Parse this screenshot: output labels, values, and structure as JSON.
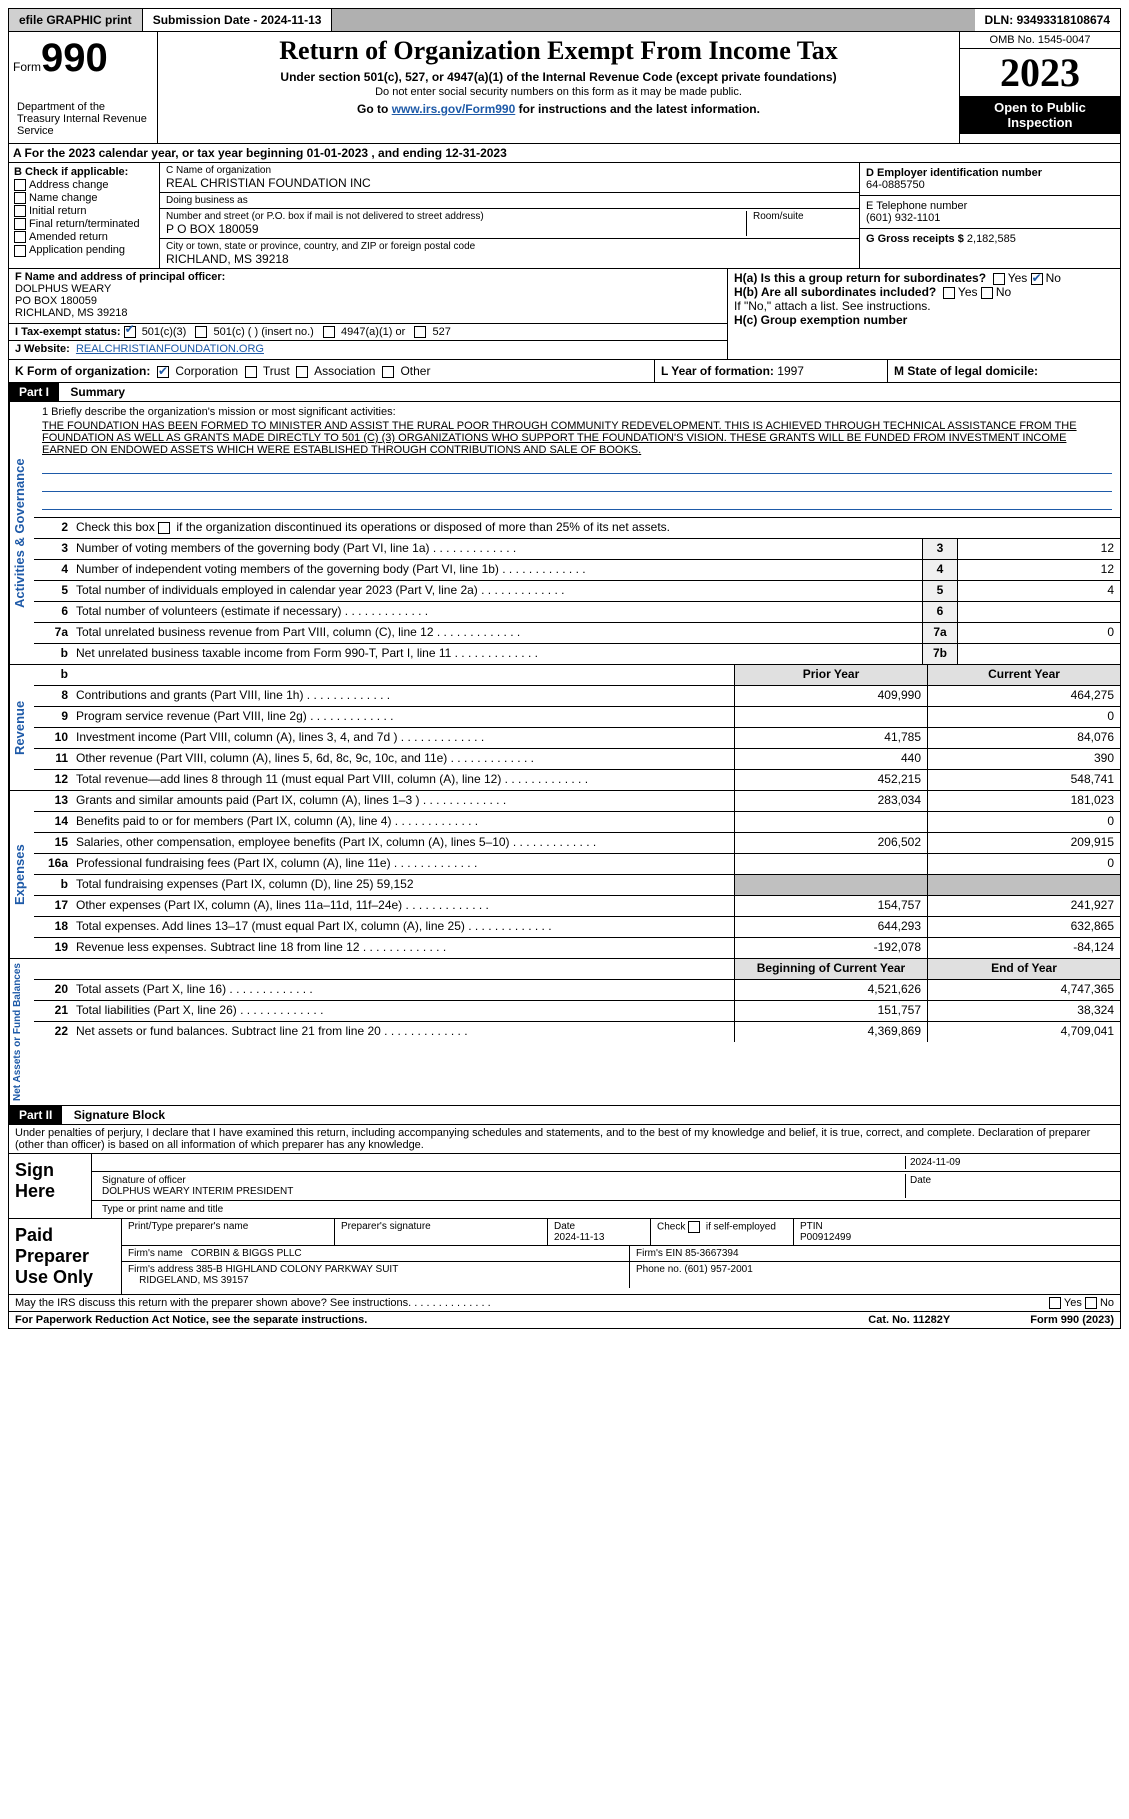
{
  "top": {
    "efile": "efile GRAPHIC print",
    "sub_label": "Submission Date",
    "sub_date": "2024-11-13",
    "dln_label": "DLN:",
    "dln": "93493318108674"
  },
  "header": {
    "form": "Form",
    "num": "990",
    "dept": "Department of the Treasury Internal Revenue Service",
    "title": "Return of Organization Exempt From Income Tax",
    "sub1": "Under section 501(c), 527, or 4947(a)(1) of the Internal Revenue Code (except private foundations)",
    "sub2": "Do not enter social security numbers on this form as it may be made public.",
    "sub3": "Go to www.irs.gov/Form990 for instructions and the latest information.",
    "omb": "OMB No. 1545-0047",
    "year": "2023",
    "inspect": "Open to Public Inspection"
  },
  "rowA": "A For the 2023 calendar year, or tax year beginning 01-01-2023   , and ending 12-31-2023",
  "checkB": {
    "label": "B Check if applicable:",
    "items": [
      "Address change",
      "Name change",
      "Initial return",
      "Final return/terminated",
      "Amended return",
      "Application pending"
    ]
  },
  "orgC": {
    "name_label": "C Name of organization",
    "name": "REAL CHRISTIAN FOUNDATION INC",
    "dba_label": "Doing business as",
    "dba": "",
    "addr_label": "Number and street (or P.O. box if mail is not delivered to street address)",
    "addr": "P O BOX 180059",
    "room": "Room/suite",
    "city_label": "City or town, state or province, country, and ZIP or foreign postal code",
    "city": "RICHLAND, MS  39218"
  },
  "rightD": {
    "ein_label": "D Employer identification number",
    "ein": "64-0885750",
    "tel_label": "E Telephone number",
    "tel": "(601) 932-1101",
    "gross_label": "G Gross receipts $",
    "gross": "2,182,585"
  },
  "rowF": {
    "label": "F  Name and address of principal officer:",
    "name": "DOLPHUS WEARY",
    "addr1": "PO BOX 180059",
    "addr2": "RICHLAND, MS  39218"
  },
  "rowH": {
    "ha": "H(a)  Is this a group return for subordinates?",
    "hb": "H(b)  Are all subordinates included?",
    "hb_note": "If \"No,\" attach a list. See instructions.",
    "hc": "H(c)  Group exemption number",
    "yes": "Yes",
    "no": "No"
  },
  "rowI": {
    "label": "I  Tax-exempt status:",
    "opts": [
      "501(c)(3)",
      "501(c) (  ) (insert no.)",
      "4947(a)(1) or",
      "527"
    ]
  },
  "rowJ": {
    "label": "J  Website:",
    "val": "REALCHRISTIANFOUNDATION.ORG"
  },
  "rowK": {
    "label": "K Form of organization:",
    "opts": [
      "Corporation",
      "Trust",
      "Association",
      "Other"
    ]
  },
  "rowL": {
    "label": "L Year of formation:",
    "val": "1997"
  },
  "rowM": {
    "label": "M State of legal domicile:",
    "val": ""
  },
  "part1": {
    "label": "Part I",
    "title": "Summary"
  },
  "mission": {
    "label": "1   Briefly describe the organization's mission or most significant activities:",
    "text": "THE FOUNDATION HAS BEEN FORMED TO MINISTER AND ASSIST THE RURAL POOR THROUGH COMMUNITY REDEVELOPMENT. THIS IS ACHIEVED THROUGH TECHNICAL ASSISTANCE FROM THE FOUNDATION AS WELL AS GRANTS MADE DIRECTLY TO 501 (C) (3) ORGANIZATIONS WHO SUPPORT THE FOUNDATION'S VISION. THESE GRANTS WILL BE FUNDED FROM INVESTMENT INCOME EARNED ON ENDOWED ASSETS WHICH WERE ESTABLISHED THROUGH CONTRIBUTIONS AND SALE OF BOOKS."
  },
  "gov": {
    "section": "Activities & Governance",
    "line2": "Check this box       if the organization discontinued its operations or disposed of more than 25% of its net assets.",
    "rows": [
      {
        "n": "3",
        "d": "Number of voting members of the governing body (Part VI, line 1a)",
        "b": "3",
        "v": "12"
      },
      {
        "n": "4",
        "d": "Number of independent voting members of the governing body (Part VI, line 1b)",
        "b": "4",
        "v": "12"
      },
      {
        "n": "5",
        "d": "Total number of individuals employed in calendar year 2023 (Part V, line 2a)",
        "b": "5",
        "v": "4"
      },
      {
        "n": "6",
        "d": "Total number of volunteers (estimate if necessary)",
        "b": "6",
        "v": ""
      },
      {
        "n": "7a",
        "d": "Total unrelated business revenue from Part VIII, column (C), line 12",
        "b": "7a",
        "v": "0"
      },
      {
        "n": "b",
        "d": "Net unrelated business taxable income from Form 990-T, Part I, line 11",
        "b": "7b",
        "v": ""
      }
    ]
  },
  "rev": {
    "section": "Revenue",
    "header": {
      "prior": "Prior Year",
      "current": "Current Year"
    },
    "rows": [
      {
        "n": "8",
        "d": "Contributions and grants (Part VIII, line 1h)",
        "p": "409,990",
        "c": "464,275"
      },
      {
        "n": "9",
        "d": "Program service revenue (Part VIII, line 2g)",
        "p": "",
        "c": "0"
      },
      {
        "n": "10",
        "d": "Investment income (Part VIII, column (A), lines 3, 4, and 7d )",
        "p": "41,785",
        "c": "84,076"
      },
      {
        "n": "11",
        "d": "Other revenue (Part VIII, column (A), lines 5, 6d, 8c, 9c, 10c, and 11e)",
        "p": "440",
        "c": "390"
      },
      {
        "n": "12",
        "d": "Total revenue—add lines 8 through 11 (must equal Part VIII, column (A), line 12)",
        "p": "452,215",
        "c": "548,741"
      }
    ]
  },
  "exp": {
    "section": "Expenses",
    "rows": [
      {
        "n": "13",
        "d": "Grants and similar amounts paid (Part IX, column (A), lines 1–3 )",
        "p": "283,034",
        "c": "181,023"
      },
      {
        "n": "14",
        "d": "Benefits paid to or for members (Part IX, column (A), line 4)",
        "p": "",
        "c": "0"
      },
      {
        "n": "15",
        "d": "Salaries, other compensation, employee benefits (Part IX, column (A), lines 5–10)",
        "p": "206,502",
        "c": "209,915"
      },
      {
        "n": "16a",
        "d": "Professional fundraising fees (Part IX, column (A), line 11e)",
        "p": "",
        "c": "0"
      },
      {
        "n": "b",
        "d": "Total fundraising expenses (Part IX, column (D), line 25) 59,152",
        "gray": true
      },
      {
        "n": "17",
        "d": "Other expenses (Part IX, column (A), lines 11a–11d, 11f–24e)",
        "p": "154,757",
        "c": "241,927"
      },
      {
        "n": "18",
        "d": "Total expenses. Add lines 13–17 (must equal Part IX, column (A), line 25)",
        "p": "644,293",
        "c": "632,865"
      },
      {
        "n": "19",
        "d": "Revenue less expenses. Subtract line 18 from line 12",
        "p": "-192,078",
        "c": "-84,124"
      }
    ]
  },
  "net": {
    "section": "Net Assets or Fund Balances",
    "header": {
      "beg": "Beginning of Current Year",
      "end": "End of Year"
    },
    "rows": [
      {
        "n": "20",
        "d": "Total assets (Part X, line 16)",
        "p": "4,521,626",
        "c": "4,747,365"
      },
      {
        "n": "21",
        "d": "Total liabilities (Part X, line 26)",
        "p": "151,757",
        "c": "38,324"
      },
      {
        "n": "22",
        "d": "Net assets or fund balances. Subtract line 21 from line 20",
        "p": "4,369,869",
        "c": "4,709,041"
      }
    ]
  },
  "part2": {
    "label": "Part II",
    "title": "Signature Block"
  },
  "penalty": "Under penalties of perjury, I declare that I have examined this return, including accompanying schedules and statements, and to the best of my knowledge and belief, it is true, correct, and complete. Declaration of preparer (other than officer) is based on all information of which preparer has any knowledge.",
  "sign": {
    "label": "Sign Here",
    "sig_date": "2024-11-09",
    "sig_label": "Signature of officer",
    "officer": "DOLPHUS WEARY INTERIM PRESIDENT",
    "type_label": "Type or print name and title",
    "date_label": "Date"
  },
  "prep": {
    "label": "Paid Preparer Use Only",
    "h": [
      "Print/Type preparer's name",
      "Preparer's signature",
      "Date",
      "Check       if self-employed",
      "PTIN"
    ],
    "date": "2024-11-13",
    "ptin": "P00912499",
    "firm_label": "Firm's name",
    "firm": "CORBIN & BIGGS PLLC",
    "ein_label": "Firm's EIN",
    "ein": "85-3667394",
    "addr_label": "Firm's address",
    "addr": "385-B HIGHLAND COLONY PARKWAY SUIT",
    "addr2": "RIDGELAND, MS  39157",
    "phone_label": "Phone no.",
    "phone": "(601) 957-2001"
  },
  "may": "May the IRS discuss this return with the preparer shown above? See instructions.",
  "footer": {
    "pra": "For Paperwork Reduction Act Notice, see the separate instructions.",
    "cat": "Cat. No. 11282Y",
    "form": "Form 990 (2023)"
  }
}
